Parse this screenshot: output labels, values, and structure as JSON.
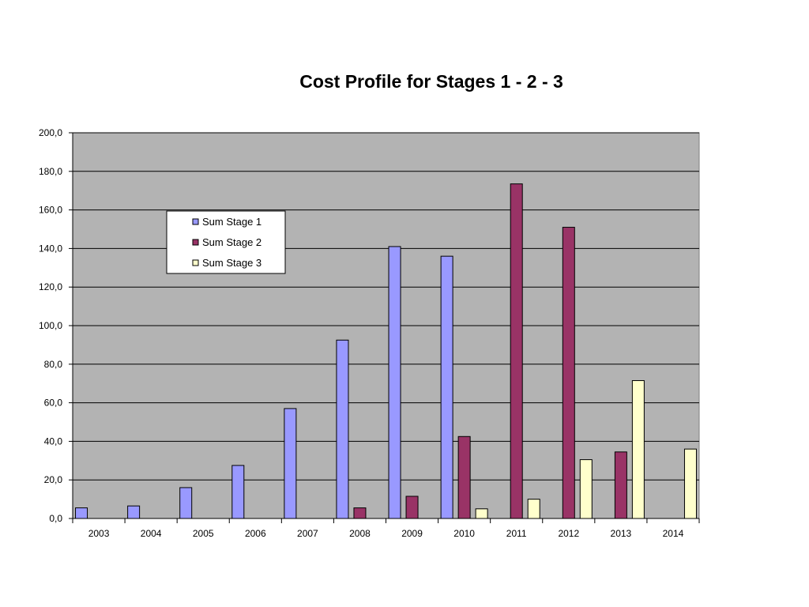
{
  "chart_data": {
    "type": "bar",
    "title": "Cost Profile for Stages 1 - 2 - 3",
    "xlabel": "",
    "ylabel": "",
    "categories": [
      "2003",
      "2004",
      "2005",
      "2006",
      "2007",
      "2008",
      "2009",
      "2010",
      "2011",
      "2012",
      "2013",
      "2014"
    ],
    "series": [
      {
        "name": "Sum Stage 1",
        "color": "#9999ff",
        "values": [
          5.5,
          6.5,
          16.0,
          27.5,
          57.0,
          92.5,
          141.0,
          136.0,
          0,
          0,
          0,
          0
        ]
      },
      {
        "name": "Sum Stage 2",
        "color": "#993366",
        "values": [
          0,
          0,
          0,
          0,
          0,
          5.5,
          11.5,
          42.5,
          173.5,
          151.0,
          34.5,
          0
        ]
      },
      {
        "name": "Sum Stage 3",
        "color": "#ffffcc",
        "values": [
          0,
          0,
          0,
          0,
          0,
          0,
          0,
          5.0,
          10.0,
          30.5,
          71.5,
          36.0
        ]
      }
    ],
    "ylim": [
      0,
      200
    ],
    "ytick_step": 20,
    "ytick_labels": [
      "0,0",
      "20,0",
      "40,0",
      "60,0",
      "80,0",
      "100,0",
      "120,0",
      "140,0",
      "160,0",
      "180,0",
      "200,0"
    ],
    "plot_background": "#b3b3b3",
    "gridlines": true,
    "legend": {
      "position": "upper-left",
      "entries": [
        "Sum Stage 1",
        "Sum Stage 2",
        "Sum Stage 3"
      ]
    }
  }
}
